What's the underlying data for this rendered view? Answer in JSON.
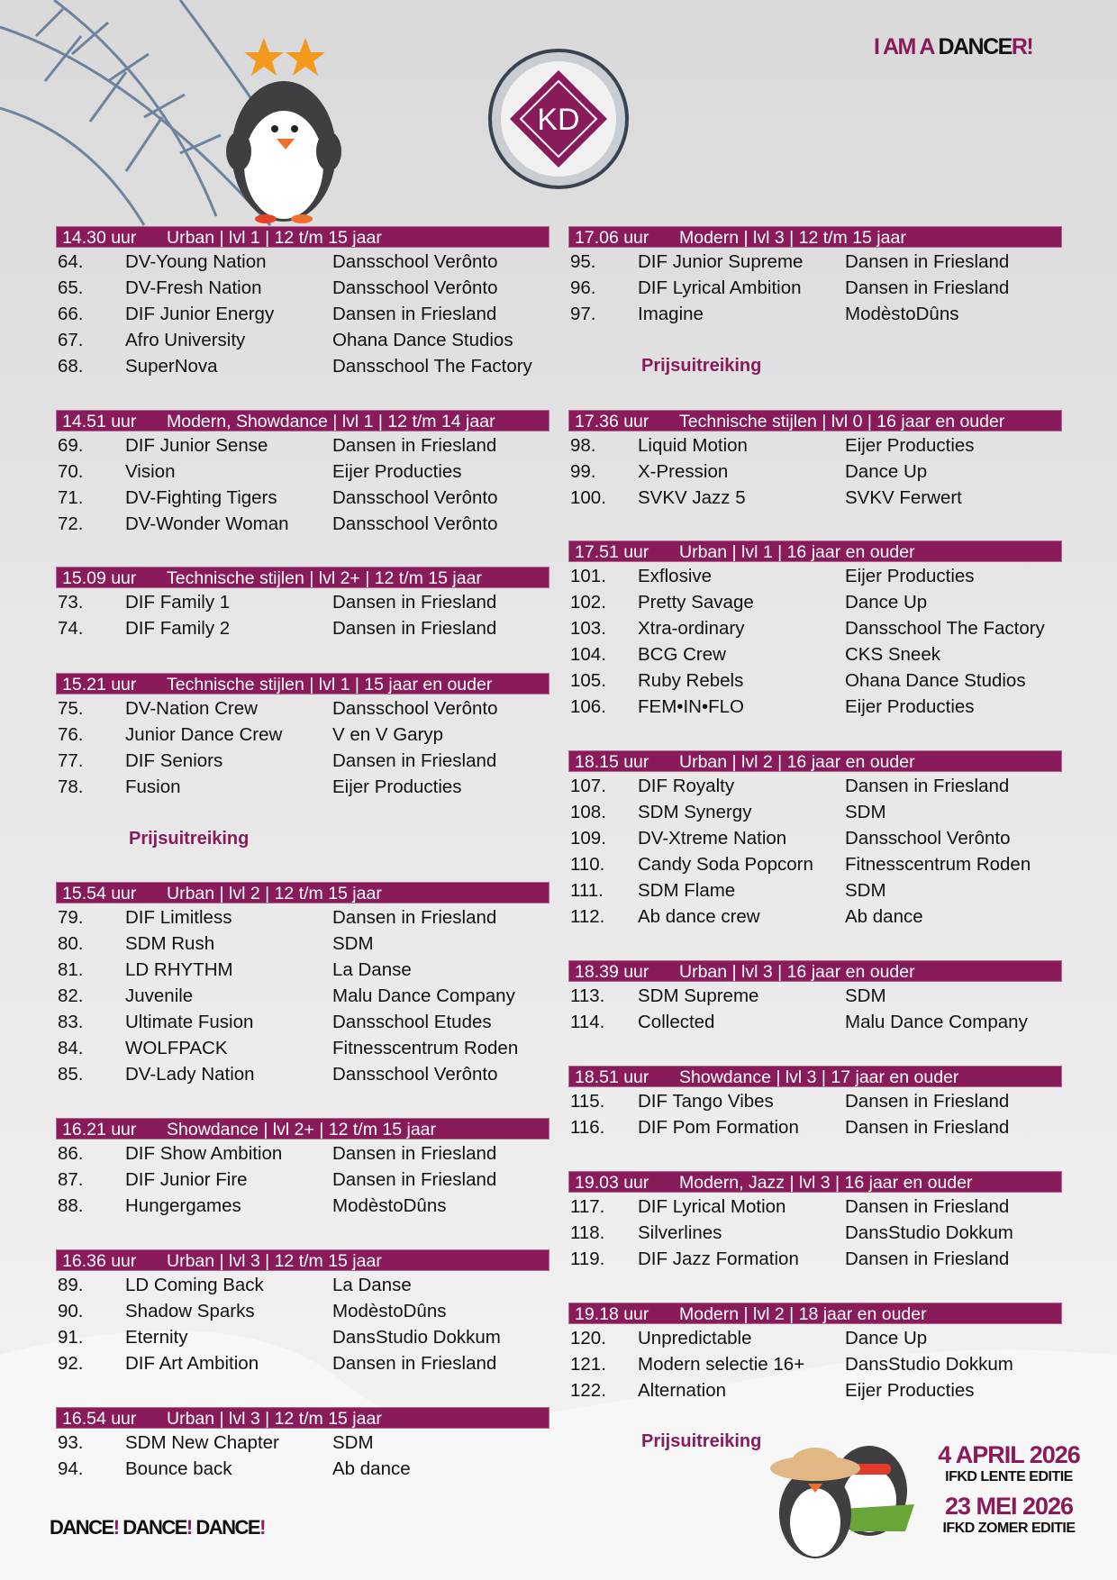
{
  "header": {
    "brand_part1": "I AM A ",
    "brand_part2": "DANCE",
    "brand_part3": "R!",
    "logo_ring_text": "I AM A DANCER!",
    "logo_letters": "IFKD"
  },
  "colors": {
    "accent": "#8a1b5b",
    "text": "#111111",
    "background": "#e4e4e5"
  },
  "left_column": [
    {
      "time": "14.30 uur",
      "desc": "Urban | lvl 1 | 12 t/m 15 jaar",
      "entries": [
        [
          "64.",
          "DV-Young Nation",
          "Dansschool Verônto"
        ],
        [
          "65.",
          "DV-Fresh Nation",
          "Dansschool Verônto"
        ],
        [
          "66.",
          "DIF Junior Energy",
          "Dansen in Friesland"
        ],
        [
          "67.",
          "Afro University",
          "Ohana Dance Studios"
        ],
        [
          "68.",
          "SuperNova",
          "Dansschool The Factory"
        ]
      ]
    },
    {
      "time": "14.51 uur",
      "desc": "Modern, Showdance | lvl 1 | 12 t/m 14 jaar",
      "entries": [
        [
          "69.",
          "DIF Junior Sense",
          "Dansen in Friesland"
        ],
        [
          "70.",
          "Vision",
          "Eijer Producties"
        ],
        [
          "71.",
          "DV-Fighting Tigers",
          "Dansschool Verônto"
        ],
        [
          "72.",
          "DV-Wonder Woman",
          "Dansschool Verônto"
        ]
      ]
    },
    {
      "time": "15.09 uur",
      "desc": "Technische stijlen | lvl 2+ | 12 t/m 15 jaar",
      "entries": [
        [
          "73.",
          "DIF Family 1",
          "Dansen in Friesland"
        ],
        [
          "74.",
          "DIF Family 2",
          "Dansen in Friesland"
        ]
      ]
    },
    {
      "time": "15.21 uur",
      "desc": "Technische stijlen | lvl 1 | 15 jaar en ouder",
      "entries": [
        [
          "75.",
          "DV-Nation Crew",
          "Dansschool Verônto"
        ],
        [
          "76.",
          "Junior Dance Crew",
          "V en V Garyp"
        ],
        [
          "77.",
          "DIF Seniors",
          "Dansen in Friesland"
        ],
        [
          "78.",
          "Fusion",
          "Eijer Producties"
        ]
      ]
    },
    {
      "time": "15.54 uur",
      "desc": "Urban | lvl 2 | 12 t/m 15 jaar",
      "entries": [
        [
          "79.",
          "DIF Limitless",
          "Dansen in Friesland"
        ],
        [
          "80.",
          "SDM Rush",
          "SDM"
        ],
        [
          "81.",
          "LD RHYTHM",
          "La Danse"
        ],
        [
          "82.",
          "Juvenile",
          "Malu Dance Company"
        ],
        [
          "83.",
          "Ultimate Fusion",
          "Dansschool Etudes"
        ],
        [
          "84.",
          "WOLFPACK",
          "Fitnesscentrum Roden"
        ],
        [
          "85.",
          "DV-Lady Nation",
          "Dansschool Verônto"
        ]
      ]
    },
    {
      "time": "16.21 uur",
      "desc": "Showdance | lvl 2+ | 12 t/m 15 jaar",
      "entries": [
        [
          "86.",
          "DIF Show Ambition",
          "Dansen in Friesland"
        ],
        [
          "87.",
          "DIF Junior Fire",
          "Dansen in Friesland"
        ],
        [
          "88.",
          "Hungergames",
          "ModèstoDûns"
        ]
      ]
    },
    {
      "time": "16.36 uur",
      "desc": "Urban | lvl 3 | 12 t/m 15 jaar",
      "entries": [
        [
          "89.",
          "LD Coming Back",
          "La Danse"
        ],
        [
          "90.",
          "Shadow Sparks",
          "ModèstoDûns"
        ],
        [
          "91.",
          "Eternity",
          "DansStudio Dokkum"
        ],
        [
          "92.",
          "DIF Art Ambition",
          "Dansen in Friesland"
        ]
      ]
    },
    {
      "time": "16.54 uur",
      "desc": "Urban | lvl 3 | 12 t/m 15 jaar",
      "entries": [
        [
          "93.",
          "SDM New Chapter",
          "SDM"
        ],
        [
          "94.",
          "Bounce back",
          "Ab dance"
        ]
      ]
    }
  ],
  "right_column": [
    {
      "time": "17.06 uur",
      "desc": "Modern | lvl 3 | 12 t/m 15 jaar",
      "entries": [
        [
          "95.",
          "DIF Junior Supreme",
          "Dansen in Friesland"
        ],
        [
          "96.",
          "DIF Lyrical Ambition",
          "Dansen in Friesland"
        ],
        [
          "97.",
          "Imagine",
          "ModèstoDûns"
        ]
      ]
    },
    {
      "time": "17.36 uur",
      "desc": "Technische stijlen | lvl 0 | 16 jaar en ouder",
      "entries": [
        [
          "98.",
          "Liquid Motion",
          "Eijer Producties"
        ],
        [
          "99.",
          "X-Pression",
          "Dance Up"
        ],
        [
          "100.",
          "SVKV Jazz 5",
          "SVKV Ferwert"
        ]
      ]
    },
    {
      "time": "17.51 uur",
      "desc": "Urban | lvl 1 | 16 jaar en ouder",
      "entries": [
        [
          "101.",
          "Exflosive",
          "Eijer Producties"
        ],
        [
          "102.",
          "Pretty Savage",
          "Dance Up"
        ],
        [
          "103.",
          "Xtra-ordinary",
          "Dansschool The Factory"
        ],
        [
          "104.",
          "BCG Crew",
          "CKS Sneek"
        ],
        [
          "105.",
          "Ruby Rebels",
          "Ohana Dance Studios"
        ],
        [
          "106.",
          "FEM•IN•FLO",
          "Eijer Producties"
        ]
      ]
    },
    {
      "time": "18.15 uur",
      "desc": "Urban | lvl 2 | 16 jaar en ouder",
      "entries": [
        [
          "107.",
          "DIF Royalty",
          "Dansen in Friesland"
        ],
        [
          "108.",
          "SDM Synergy",
          "SDM"
        ],
        [
          "109.",
          "DV-Xtreme Nation",
          "Dansschool Verônto"
        ],
        [
          "110.",
          "Candy Soda Popcorn",
          "Fitnesscentrum Roden"
        ],
        [
          "111.",
          "SDM Flame",
          "SDM"
        ],
        [
          "112.",
          "Ab dance crew",
          "Ab dance"
        ]
      ]
    },
    {
      "time": "18.39 uur",
      "desc": "Urban | lvl 3 | 16 jaar en ouder",
      "entries": [
        [
          "113.",
          "SDM Supreme",
          "SDM"
        ],
        [
          "114.",
          "Collected",
          "Malu Dance Company"
        ]
      ]
    },
    {
      "time": "18.51 uur",
      "desc": "Showdance | lvl 3 | 17 jaar en ouder",
      "entries": [
        [
          "115.",
          "DIF Tango Vibes",
          "Dansen in Friesland"
        ],
        [
          "116.",
          "DIF Pom Formation",
          "Dansen in Friesland"
        ]
      ]
    },
    {
      "time": "19.03 uur",
      "desc": "Modern, Jazz | lvl 3 | 16 jaar en ouder",
      "entries": [
        [
          "117.",
          "DIF Lyrical Motion",
          "Dansen in Friesland"
        ],
        [
          "118.",
          "Silverlines",
          "DansStudio Dokkum"
        ],
        [
          "119.",
          "DIF Jazz Formation",
          "Dansen in Friesland"
        ]
      ]
    },
    {
      "time": "19.18 uur",
      "desc": "Modern | lvl 2 | 18 jaar en ouder",
      "entries": [
        [
          "120.",
          "Unpredictable",
          "Dance Up"
        ],
        [
          "121.",
          "Modern selectie 16+",
          "DansStudio Dokkum"
        ],
        [
          "122.",
          "Alternation",
          "Eijer Producties"
        ]
      ]
    }
  ],
  "prize_label": "Prijsuitreiking",
  "footer": {
    "slogan_word": "DANCE",
    "slogan_mark": "!",
    "date1": "4 APRIL 2026",
    "edition1": "IFKD LENTE EDITIE",
    "date2": "23 MEI 2026",
    "edition2": "IFKD ZOMER EDITIE"
  }
}
